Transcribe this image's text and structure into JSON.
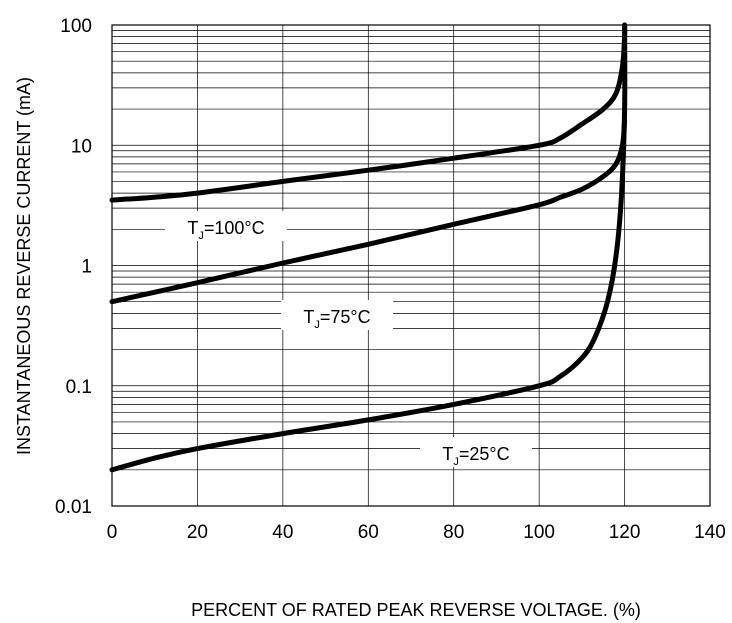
{
  "chart_data": {
    "type": "line",
    "title": "",
    "xlabel": "PERCENT OF RATED PEAK REVERSE VOLTAGE. (%)",
    "ylabel": "INSTANTANEOUS REVERSE CURRENT (mA)",
    "x_scale": "linear",
    "y_scale": "log",
    "xlim": [
      0,
      140
    ],
    "ylim": [
      0.01,
      100
    ],
    "x_ticks": [
      "0",
      "20",
      "40",
      "60",
      "80",
      "100",
      "120",
      "140"
    ],
    "y_ticks": [
      "0.01",
      "0.1",
      "1",
      "10",
      "100"
    ],
    "grid": true,
    "series": [
      {
        "name": "TJ=100°C",
        "label_main": "T",
        "label_sub": "J",
        "label_rest": "=100°C",
        "x": [
          0,
          10,
          20,
          40,
          60,
          80,
          100,
          105,
          110,
          115,
          118,
          119.5,
          120,
          120
        ],
        "y": [
          3.5,
          3.7,
          4,
          5,
          6.2,
          7.8,
          10,
          11.5,
          15,
          20,
          27,
          45,
          80,
          100
        ]
      },
      {
        "name": "TJ=75°C",
        "label_main": "T",
        "label_sub": "J",
        "label_rest": "=75°C",
        "x": [
          0,
          20,
          40,
          60,
          80,
          100,
          105,
          110,
          115,
          118,
          119.5,
          120
        ],
        "y": [
          0.5,
          0.72,
          1.05,
          1.5,
          2.2,
          3.2,
          3.7,
          4.3,
          5.5,
          7,
          10,
          16
        ]
      },
      {
        "name": "TJ=25°C",
        "label_main": "T",
        "label_sub": "J",
        "label_rest": "=25°C",
        "x": [
          0,
          10,
          20,
          40,
          60,
          80,
          100,
          105,
          110,
          113,
          116,
          118,
          119.3,
          120,
          120
        ],
        "y": [
          0.02,
          0.025,
          0.03,
          0.04,
          0.052,
          0.07,
          0.1,
          0.12,
          0.17,
          0.25,
          0.5,
          1.2,
          4,
          20,
          100
        ]
      }
    ]
  }
}
